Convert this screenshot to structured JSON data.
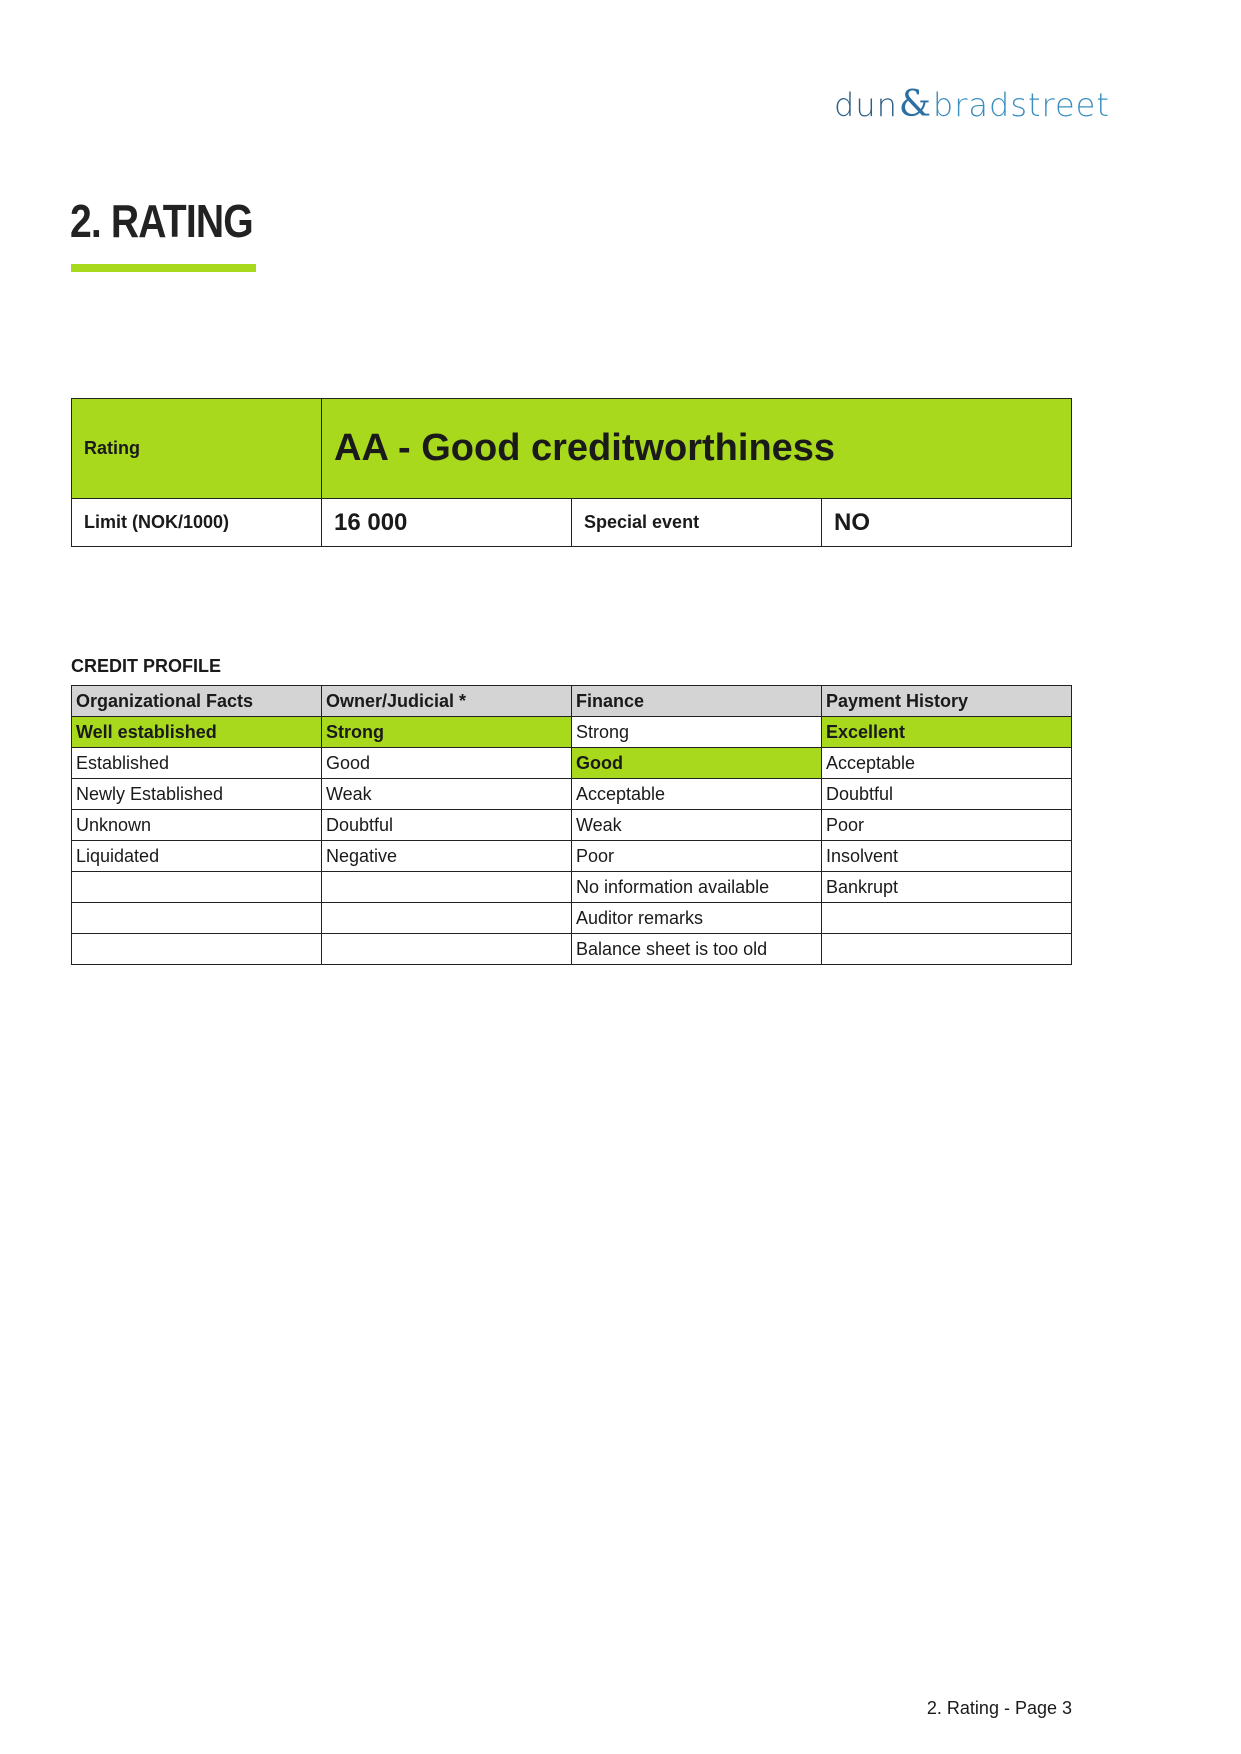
{
  "logo": {
    "left": "dun",
    "amp": "&",
    "right": "bradstreet"
  },
  "heading": "2. RATING",
  "rating_box": {
    "rating_label": "Rating",
    "rating_value": "AA - Good creditworthiness",
    "limit_label": "Limit (NOK/1000)",
    "limit_value": "16 000",
    "special_event_label": "Special event",
    "special_event_value": "NO"
  },
  "credit_profile": {
    "title": "CREDIT PROFILE",
    "headers": [
      "Organizational Facts",
      "Owner/Judicial *",
      "Finance",
      "Payment History"
    ],
    "rows": [
      [
        "Well established",
        "Strong",
        "Strong",
        "Excellent"
      ],
      [
        "Established",
        "Good",
        "Good",
        "Acceptable"
      ],
      [
        "Newly Established",
        "Weak",
        "Acceptable",
        "Doubtful"
      ],
      [
        "Unknown",
        "Doubtful",
        "Weak",
        "Poor"
      ],
      [
        "Liquidated",
        "Negative",
        "Poor",
        "Insolvent"
      ],
      [
        "",
        "",
        "No information available",
        "Bankrupt"
      ],
      [
        "",
        "",
        "Auditor remarks",
        ""
      ],
      [
        "",
        "",
        "Balance sheet is too old",
        ""
      ]
    ],
    "highlighted": {
      "Organizational Facts": "Well established",
      "Owner/Judicial *": "Strong",
      "Finance": "Good",
      "Payment History": "Excellent"
    },
    "highlight_color": "#a8d91c"
  },
  "footer": "2. Rating - Page 3"
}
